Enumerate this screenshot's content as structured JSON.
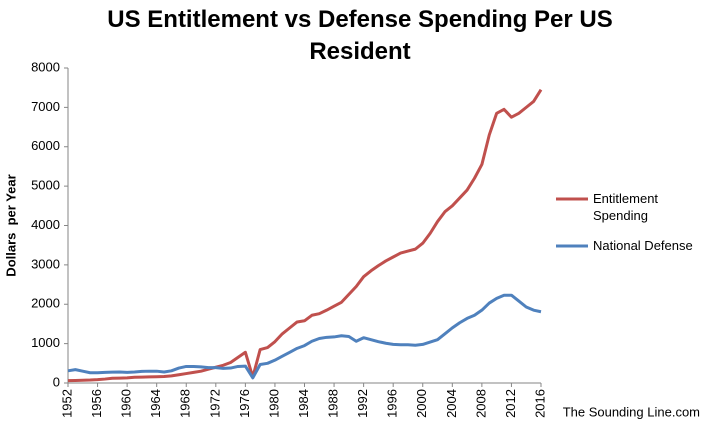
{
  "chart_data": {
    "type": "line",
    "title": "US Entitlement vs Defense Spending Per US Resident",
    "y_label": "Dollars  per Year",
    "source": "The Sounding Line.com",
    "x": [
      1952,
      1953,
      1954,
      1955,
      1956,
      1957,
      1958,
      1959,
      1960,
      1961,
      1962,
      1963,
      1964,
      1965,
      1966,
      1967,
      1968,
      1969,
      1970,
      1971,
      1972,
      1973,
      1974,
      1975,
      1976,
      1977,
      1978,
      1979,
      1980,
      1981,
      1982,
      1983,
      1984,
      1985,
      1986,
      1987,
      1988,
      1989,
      1990,
      1991,
      1992,
      1993,
      1994,
      1995,
      1996,
      1997,
      1998,
      1999,
      2000,
      2001,
      2002,
      2003,
      2004,
      2005,
      2006,
      2007,
      2008,
      2009,
      2010,
      2011,
      2012,
      2013,
      2014,
      2015,
      2016
    ],
    "series": [
      {
        "name": "Entitlement Spending",
        "color": "#c0504d",
        "values": [
          60,
          65,
          70,
          75,
          85,
          100,
          120,
          125,
          130,
          145,
          150,
          155,
          160,
          165,
          180,
          210,
          240,
          270,
          300,
          350,
          400,
          450,
          520,
          650,
          780,
          150,
          850,
          900,
          1050,
          1250,
          1400,
          1550,
          1580,
          1720,
          1760,
          1850,
          1950,
          2050,
          2250,
          2450,
          2700,
          2850,
          2980,
          3100,
          3200,
          3300,
          3350,
          3400,
          3550,
          3800,
          4100,
          4350,
          4500,
          4700,
          4900,
          5200,
          5550,
          6300,
          6850,
          6950,
          6750,
          6850,
          7000,
          7150,
          7450
        ]
      },
      {
        "name": "National Defense",
        "color": "#4f81bd",
        "values": [
          310,
          340,
          300,
          260,
          260,
          270,
          275,
          280,
          270,
          280,
          295,
          300,
          300,
          280,
          310,
          380,
          420,
          420,
          410,
          390,
          390,
          370,
          380,
          420,
          430,
          130,
          470,
          500,
          580,
          680,
          780,
          880,
          950,
          1060,
          1130,
          1160,
          1170,
          1200,
          1180,
          1060,
          1150,
          1100,
          1050,
          1010,
          980,
          970,
          970,
          960,
          980,
          1040,
          1100,
          1250,
          1400,
          1530,
          1640,
          1720,
          1850,
          2030,
          2150,
          2230,
          2230,
          2080,
          1930,
          1850,
          1810
        ]
      }
    ],
    "xlim": [
      1952,
      2016
    ],
    "xticks": [
      1952,
      1956,
      1960,
      1964,
      1968,
      1972,
      1976,
      1980,
      1984,
      1988,
      1992,
      1996,
      2000,
      2004,
      2008,
      2012,
      2016
    ],
    "ylim": [
      0,
      8000
    ],
    "yticks": [
      0,
      1000,
      2000,
      3000,
      4000,
      5000,
      6000,
      7000,
      8000
    ],
    "grid": false,
    "legend": "right"
  }
}
